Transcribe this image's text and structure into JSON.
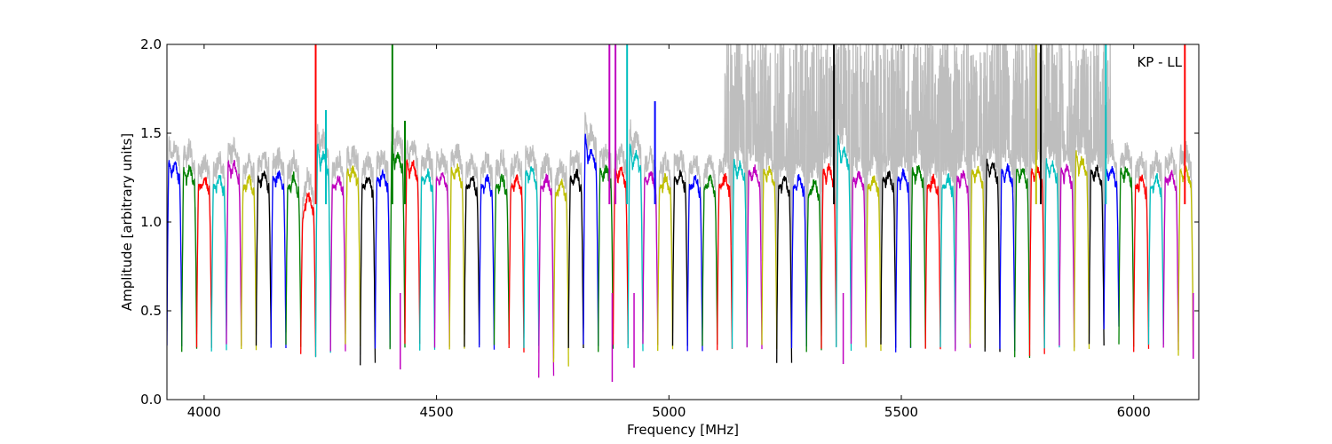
{
  "chart_data": {
    "type": "line",
    "title": "",
    "annotation": "KP - LL",
    "xlabel": "Frequency [MHz]",
    "ylabel": "Amplitude [arbitrary units]",
    "xlim": [
      3920,
      6140
    ],
    "ylim": [
      0.0,
      2.0
    ],
    "xticks": [
      4000,
      4500,
      5000,
      5500,
      6000
    ],
    "xtick_labels": [
      "4000",
      "4500",
      "5000",
      "5500",
      "6000"
    ],
    "yticks": [
      0.0,
      0.5,
      1.0,
      1.5,
      2.0
    ],
    "ytick_labels": [
      "0.0",
      "0.5",
      "1.0",
      "1.5",
      "2.0"
    ],
    "grid": false,
    "background_color": "#bebebe",
    "channel_start_mhz": 3920,
    "channel_width_mhz": 32,
    "channel_count": 69,
    "color_cycle": [
      "#0000ff",
      "#008000",
      "#ff0000",
      "#00bfbf",
      "#bf00bf",
      "#bfbf00",
      "#000000"
    ],
    "channel_plateau_levels": [
      1.35,
      1.3,
      1.2,
      1.2,
      1.35,
      1.2,
      1.25,
      1.25,
      1.2,
      1.0,
      1.45,
      1.2,
      1.3,
      1.2,
      1.25,
      1.45,
      1.35,
      1.25,
      1.25,
      1.3,
      1.2,
      1.2,
      1.2,
      1.2,
      1.3,
      1.2,
      1.15,
      1.25,
      1.5,
      1.3,
      1.3,
      1.45,
      1.25,
      1.2,
      1.25,
      1.2,
      1.2,
      1.2,
      1.35,
      1.3,
      1.3,
      1.2,
      1.2,
      1.15,
      1.3,
      1.5,
      1.25,
      1.2,
      1.25,
      1.25,
      1.3,
      1.2,
      1.2,
      1.25,
      1.3,
      1.35,
      1.3,
      1.3,
      1.3,
      1.35,
      1.3,
      1.4,
      1.3,
      1.3,
      1.3,
      1.2,
      1.2,
      1.25,
      1.3
    ],
    "channel_dip_levels": [
      0.3,
      0.28,
      0.3,
      0.28,
      0.3,
      0.28,
      0.3,
      0.28,
      0.3,
      0.25,
      0.25,
      0.28,
      0.3,
      0.2,
      0.3,
      0.28,
      0.3,
      0.28,
      0.3,
      0.28,
      0.3,
      0.28,
      0.3,
      0.28,
      0.3,
      0.12,
      0.2,
      0.28,
      0.3,
      0.28,
      0.3,
      0.28,
      0.3,
      0.28,
      0.3,
      0.28,
      0.3,
      0.28,
      0.3,
      0.28,
      0.3,
      0.22,
      0.3,
      0.28,
      0.3,
      0.28,
      0.3,
      0.28,
      0.3,
      0.28,
      0.3,
      0.28,
      0.3,
      0.28,
      0.3,
      0.28,
      0.28,
      0.25,
      0.25,
      0.28,
      0.3,
      0.28,
      0.3,
      0.4,
      0.3,
      0.28,
      0.3,
      0.28,
      0.25
    ],
    "spikes": [
      {
        "x": 4240,
        "y": 2.0,
        "color": "#ff0000"
      },
      {
        "x": 4262,
        "y": 1.63,
        "color": "#00bfbf"
      },
      {
        "x": 4405,
        "y": 2.0,
        "color": "#008000"
      },
      {
        "x": 4432,
        "y": 1.57,
        "color": "#008000"
      },
      {
        "x": 4872,
        "y": 2.0,
        "color": "#bf00bf"
      },
      {
        "x": 4885,
        "y": 2.0,
        "color": "#bf00bf"
      },
      {
        "x": 4910,
        "y": 2.0,
        "color": "#00bfbf"
      },
      {
        "x": 4970,
        "y": 1.68,
        "color": "#0000ff"
      },
      {
        "x": 5355,
        "y": 2.0,
        "color": "#000000"
      },
      {
        "x": 5790,
        "y": 2.0,
        "color": "#bfbf00"
      },
      {
        "x": 5800,
        "y": 2.0,
        "color": "#000000"
      },
      {
        "x": 5940,
        "y": 2.0,
        "color": "#00bfbf"
      },
      {
        "x": 6110,
        "y": 2.0,
        "color": "#ff0000"
      }
    ],
    "deep_dips": [
      {
        "x": 4422,
        "y": 0.17
      },
      {
        "x": 4878,
        "y": 0.1
      },
      {
        "x": 4925,
        "y": 0.18
      },
      {
        "x": 5375,
        "y": 0.2
      },
      {
        "x": 6128,
        "y": 0.23
      }
    ]
  }
}
